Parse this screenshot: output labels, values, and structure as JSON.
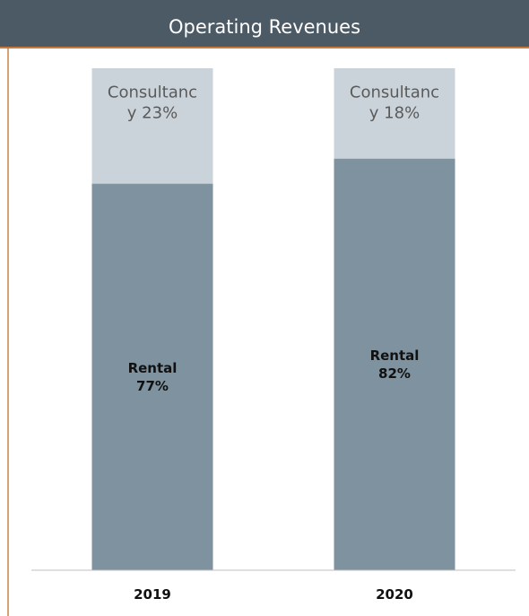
{
  "title": "Operating Revenues",
  "colors": {
    "header": "#4c5a66",
    "accent": "#c97a3a",
    "rental": "#7f929f",
    "consultancy": "#cbd3da",
    "axis": "#bfbfbf"
  },
  "chart_data": {
    "type": "bar",
    "stacked": true,
    "title": "Operating Revenues",
    "categories": [
      "2019",
      "2020"
    ],
    "ylim": [
      0,
      100
    ],
    "grid": false,
    "series": [
      {
        "name": "Rental",
        "values": [
          77,
          82
        ],
        "labels": [
          [
            "Rental",
            "77%"
          ],
          [
            "Rental",
            "82%"
          ]
        ]
      },
      {
        "name": "Consultancy",
        "values": [
          23,
          18
        ],
        "labels": [
          [
            "Consultanc",
            "y 23%"
          ],
          [
            "Consultanc",
            "y 18%"
          ]
        ]
      }
    ]
  }
}
